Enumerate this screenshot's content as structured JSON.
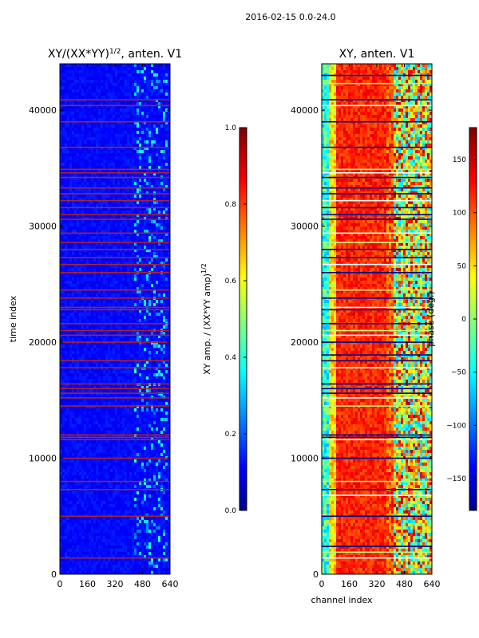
{
  "suptitle": "2016-02-15 0.0-24.0",
  "colors": {
    "jet_dark_blue": "#00008f",
    "jet_blue": "#0000ff",
    "jet_cyan": "#00ffff",
    "jet_yellow": "#ffff00",
    "jet_red": "#ff0000",
    "jet_dark_red": "#800000",
    "flag_line": "#b22222",
    "axes": "#000000"
  },
  "chart_data": [
    {
      "type": "heatmap",
      "title_main": "XY/(XX*YY)",
      "title_exp": "1/2",
      "title_suffix": ", anten. V1",
      "xlabel": "",
      "ylabel": "time index",
      "xlim": [
        0,
        640
      ],
      "ylim": [
        0,
        44000
      ],
      "xticks": [
        0,
        160,
        320,
        480,
        640
      ],
      "yticks": [
        0,
        10000,
        20000,
        30000,
        40000
      ],
      "ytick_labels": [
        "0",
        "10000",
        "20000",
        "30000",
        "40000"
      ],
      "colorbar": {
        "label_main": "XY amp. / (XX*YY amp)",
        "label_exp": "1/2",
        "range": [
          0.0,
          1.0
        ],
        "ticks": [
          "0.0",
          "0.2",
          "0.4",
          "0.6",
          "0.8",
          "1.0"
        ]
      },
      "flagged_rows": [
        1400,
        5000,
        7300,
        8000,
        10000,
        11600,
        11800,
        12000,
        14500,
        15200,
        15600,
        16000,
        16400,
        17800,
        18400,
        20000,
        20600,
        21000,
        21600,
        22800,
        23000,
        23800,
        24500,
        26000,
        26700,
        27300,
        28000,
        28600,
        29400,
        30600,
        31000,
        31600,
        32200,
        32800,
        33300,
        34200,
        34600,
        34900,
        36800,
        39000,
        40400,
        40900
      ]
    },
    {
      "type": "heatmap",
      "title": "XY, anten. V1",
      "xlabel": "channel index",
      "ylabel": "",
      "xlim": [
        0,
        640
      ],
      "ylim": [
        0,
        44000
      ],
      "xticks": [
        0,
        160,
        320,
        480,
        640
      ],
      "yticks": [
        0,
        10000,
        20000,
        30000,
        40000
      ],
      "ytick_labels": [
        "0",
        "10000",
        "20000",
        "30000",
        "40000"
      ],
      "colorbar": {
        "label": "phase (deg.)",
        "range": [
          -180,
          180
        ],
        "ticks": [
          "−150",
          "−100",
          "−50",
          "0",
          "50",
          "100",
          "150"
        ],
        "tick_values": [
          -150,
          -100,
          -50,
          0,
          50,
          100,
          150
        ]
      },
      "flagged_rows": [
        1400,
        1900,
        2400,
        5000,
        6800,
        7300,
        8000,
        10000,
        11600,
        11800,
        12000,
        14500,
        15200,
        15600,
        16000,
        16400,
        17800,
        18400,
        18900,
        20000,
        20600,
        21000,
        21600,
        22800,
        23000,
        23800,
        24500,
        26000,
        26700,
        27300,
        28000,
        28600,
        29400,
        30600,
        31000,
        31600,
        32200,
        32800,
        33300,
        34200,
        34600,
        34900,
        36800,
        39000,
        40400,
        40900,
        42300,
        43000
      ]
    }
  ]
}
